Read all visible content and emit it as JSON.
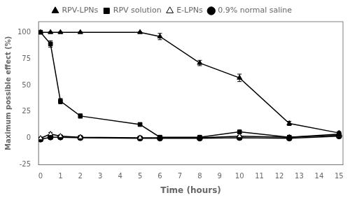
{
  "chart_data": {
    "type": "line",
    "xlabel": "Time (hours)",
    "ylabel": "Maximum possible effect (%)",
    "xlim": [
      -0.1,
      15.2
    ],
    "ylim": [
      -25,
      110
    ],
    "xticks": [
      0,
      1,
      2,
      3,
      4,
      5,
      6,
      7,
      8,
      9,
      10,
      11,
      12,
      13,
      14,
      15
    ],
    "yticks": [
      -25,
      0,
      25,
      50,
      75,
      100
    ],
    "grid": false,
    "legend": "top",
    "series": [
      {
        "name": "RPV-LPNs",
        "color": "#000000",
        "marker": "triangle",
        "line_style": "solid",
        "x": [
          0,
          0.5,
          1,
          2,
          5,
          6,
          8,
          10,
          12.5,
          15
        ],
        "values": [
          100,
          100,
          100,
          100,
          100,
          96,
          71,
          57,
          14,
          5
        ],
        "yerr": [
          0.5,
          0.5,
          0.5,
          0.5,
          0.5,
          3,
          2.5,
          3.5,
          2,
          1.5
        ]
      },
      {
        "name": "RPV solution",
        "color": "#000000",
        "marker": "square",
        "line_style": "solid",
        "x": [
          0,
          0.5,
          1,
          2,
          5,
          6,
          8,
          10,
          12.5,
          15
        ],
        "values": [
          100,
          89,
          35,
          21,
          13,
          1,
          1,
          6,
          1,
          4
        ],
        "yerr": [
          0.5,
          3,
          2.5,
          2,
          1.5,
          0.5,
          0.5,
          1.5,
          0.5,
          1
        ]
      },
      {
        "name": "E-LPNs",
        "color": "#000000",
        "marker": "triangle-open",
        "line_style": "solid",
        "x": [
          0,
          0.5,
          1,
          2,
          5,
          6,
          8,
          10,
          12.5,
          15
        ],
        "values": [
          0,
          4,
          2,
          1,
          0.5,
          0.5,
          0.5,
          2,
          1,
          3
        ],
        "yerr": [
          0.5,
          1.5,
          1,
          0.5,
          0.5,
          0.5,
          0.5,
          0.8,
          0.5,
          0.8
        ]
      },
      {
        "name": "0.9% normal saline",
        "color": "#000000",
        "marker": "circle",
        "line_style": "solid",
        "x": [
          0,
          0.5,
          1,
          2,
          5,
          6,
          8,
          10,
          12.5,
          15
        ],
        "values": [
          -1,
          1,
          1,
          0.5,
          0,
          0,
          0,
          0.5,
          0,
          2
        ],
        "yerr": [
          0.5,
          0.5,
          0.5,
          0.5,
          0.3,
          0.3,
          0.3,
          0.5,
          0.3,
          0.5
        ]
      }
    ]
  }
}
